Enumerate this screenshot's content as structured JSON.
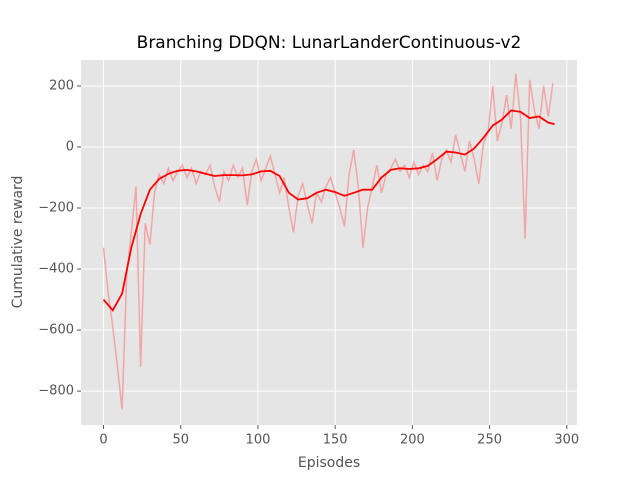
{
  "chart_data": {
    "type": "line",
    "title": "Branching DDQN: LunarLanderContinuous-v2",
    "x_label": "Episodes",
    "y_label": "Cumulative reward",
    "xlim": [
      -14.6,
      306.6
    ],
    "ylim": [
      -911,
      285
    ],
    "xticks": [
      0,
      50,
      100,
      150,
      200,
      250,
      300
    ],
    "yticks": [
      {
        "value": -800,
        "label": "−800"
      },
      {
        "value": -600,
        "label": "−600"
      },
      {
        "value": -400,
        "label": "−400"
      },
      {
        "value": -200,
        "label": "−200"
      },
      0,
      200
    ],
    "grid": true,
    "series": [
      {
        "color": "#f2a5a5",
        "x": [
          0,
          3,
          6,
          9,
          12,
          15,
          18,
          21,
          24,
          27,
          30,
          33,
          36,
          39,
          42,
          45,
          48,
          51,
          54,
          57,
          60,
          63,
          66,
          69,
          72,
          75,
          78,
          81,
          84,
          87,
          90,
          93,
          96,
          99,
          102,
          105,
          108,
          111,
          114,
          117,
          120,
          123,
          126,
          129,
          132,
          135,
          138,
          141,
          144,
          147,
          150,
          153,
          156,
          159,
          162,
          165,
          168,
          171,
          174,
          177,
          180,
          183,
          186,
          189,
          192,
          195,
          198,
          201,
          204,
          207,
          210,
          213,
          216,
          219,
          222,
          225,
          228,
          231,
          234,
          237,
          240,
          243,
          246,
          249,
          252,
          255,
          258,
          261,
          264,
          267,
          270,
          273,
          276,
          279,
          282,
          285,
          288,
          291
        ],
        "values": [
          -330,
          -480,
          -590,
          -720,
          -860,
          -420,
          -280,
          -130,
          -720,
          -250,
          -320,
          -150,
          -90,
          -120,
          -70,
          -110,
          -80,
          -60,
          -100,
          -70,
          -120,
          -80,
          -90,
          -60,
          -130,
          -180,
          -80,
          -110,
          -60,
          -100,
          -70,
          -190,
          -80,
          -40,
          -110,
          -70,
          -30,
          -90,
          -150,
          -100,
          -200,
          -280,
          -160,
          -120,
          -190,
          -250,
          -150,
          -180,
          -130,
          -100,
          -150,
          -200,
          -260,
          -90,
          -10,
          -130,
          -330,
          -200,
          -130,
          -60,
          -150,
          -90,
          -70,
          -40,
          -80,
          -60,
          -100,
          -50,
          -90,
          -60,
          -80,
          -20,
          -110,
          -40,
          -10,
          -50,
          40,
          -20,
          -80,
          20,
          -40,
          -120,
          10,
          50,
          200,
          20,
          80,
          170,
          60,
          240,
          100,
          -300,
          220,
          120,
          60,
          200,
          100,
          210
        ]
      },
      {
        "color": "#ff0000",
        "x": [
          0,
          6,
          12,
          18,
          24,
          30,
          36,
          42,
          48,
          54,
          60,
          66,
          72,
          78,
          84,
          90,
          96,
          102,
          108,
          114,
          120,
          126,
          132,
          138,
          144,
          150,
          156,
          162,
          168,
          174,
          180,
          186,
          192,
          198,
          204,
          210,
          216,
          222,
          228,
          234,
          240,
          246,
          252,
          258,
          264,
          270,
          276,
          282,
          288,
          292
        ],
        "values": [
          -500,
          -535,
          -480,
          -330,
          -220,
          -140,
          -105,
          -88,
          -78,
          -75,
          -80,
          -88,
          -95,
          -92,
          -92,
          -93,
          -90,
          -80,
          -78,
          -95,
          -150,
          -172,
          -168,
          -150,
          -140,
          -148,
          -160,
          -150,
          -140,
          -140,
          -100,
          -75,
          -70,
          -72,
          -70,
          -62,
          -40,
          -15,
          -18,
          -25,
          -5,
          30,
          70,
          90,
          120,
          115,
          95,
          100,
          80,
          75
        ]
      }
    ]
  }
}
